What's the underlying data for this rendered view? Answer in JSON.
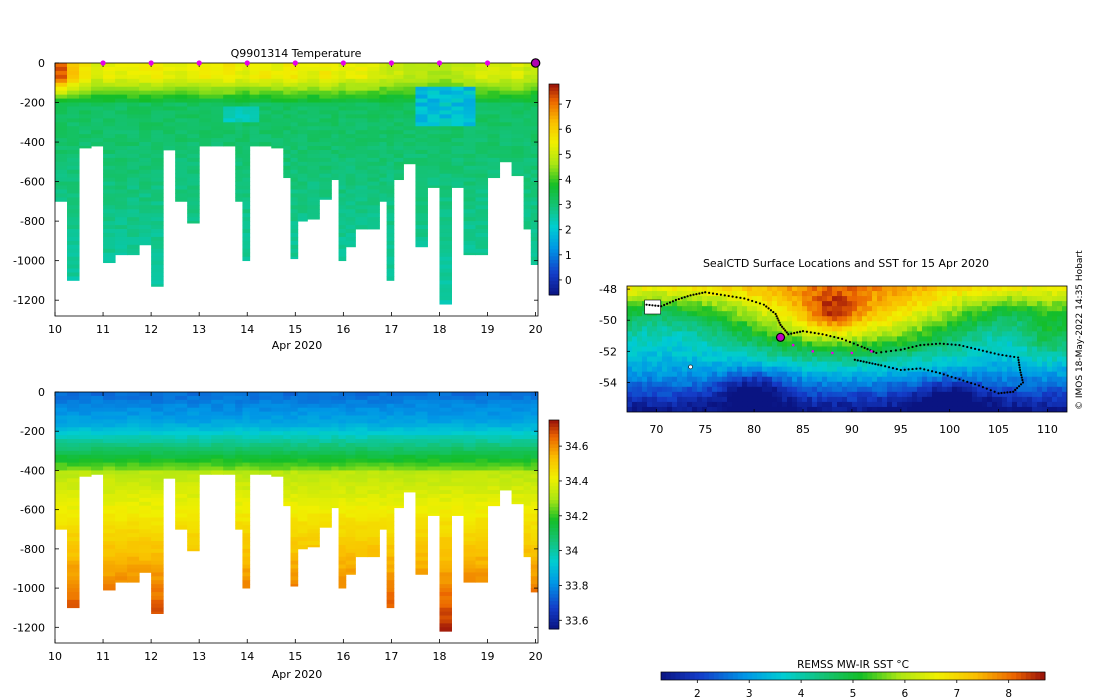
{
  "figure": {
    "watermark": "© IMOS 18-May-2022 14:35 Hobart"
  },
  "chart_data": [
    {
      "type": "heatmap",
      "id": "temperature-section",
      "title": "Q9901314  Temperature",
      "xlabel": "Apr 2020",
      "ylabel": "",
      "x_ticks": [
        10,
        11,
        12,
        13,
        14,
        15,
        16,
        17,
        18,
        19,
        20
      ],
      "xlim": [
        10,
        20.05
      ],
      "y_ticks": [
        0,
        -200,
        -400,
        -600,
        -800,
        -1000,
        -1200
      ],
      "ylim": [
        -1280,
        0
      ],
      "colorbar": {
        "ticks": [
          0,
          1,
          2,
          3,
          4,
          5,
          6,
          7
        ],
        "range": [
          -0.6,
          7.8
        ],
        "palette": "temperature"
      },
      "profile_marker_days": [
        11,
        12,
        13,
        14,
        15,
        16,
        17,
        18,
        19
      ],
      "current_marker_day": 20,
      "surface_value": 4.8,
      "profiles": [
        {
          "day": 10.0,
          "max_depth": 700,
          "warm": 7.2
        },
        {
          "day": 10.25,
          "max_depth": 1100,
          "warm": 6.2
        },
        {
          "day": 10.5,
          "max_depth": 430,
          "warm": 5.6
        },
        {
          "day": 10.75,
          "max_depth": 420,
          "warm": 5.2
        },
        {
          "day": 11.0,
          "max_depth": 1010,
          "warm": 5.4
        },
        {
          "day": 11.25,
          "max_depth": 970,
          "warm": 5.3
        },
        {
          "day": 11.5,
          "max_depth": 970,
          "warm": 5.5
        },
        {
          "day": 11.75,
          "max_depth": 920,
          "warm": 5.4
        },
        {
          "day": 12.0,
          "max_depth": 1130,
          "warm": 5.6
        },
        {
          "day": 12.25,
          "max_depth": 440,
          "warm": 5.3
        },
        {
          "day": 12.5,
          "max_depth": 700,
          "warm": 5.2
        },
        {
          "day": 12.75,
          "max_depth": 810,
          "warm": 5.4
        },
        {
          "day": 13.0,
          "max_depth": 420,
          "warm": 5.5
        },
        {
          "day": 13.25,
          "max_depth": 420,
          "warm": 5.4
        },
        {
          "day": 13.5,
          "max_depth": 420,
          "warm": 5.6
        },
        {
          "day": 13.75,
          "max_depth": 700,
          "warm": 5.3
        },
        {
          "day": 13.9,
          "max_depth": 1000,
          "warm": 5.2
        },
        {
          "day": 14.05,
          "max_depth": 420,
          "warm": 5.4
        },
        {
          "day": 14.25,
          "max_depth": 420,
          "warm": 5.5
        },
        {
          "day": 14.5,
          "max_depth": 430,
          "warm": 5.4
        },
        {
          "day": 14.75,
          "max_depth": 580,
          "warm": 5.6
        },
        {
          "day": 14.9,
          "max_depth": 990,
          "warm": 5.5
        },
        {
          "day": 15.05,
          "max_depth": 800,
          "warm": 5.4
        },
        {
          "day": 15.25,
          "max_depth": 790,
          "warm": 5.3
        },
        {
          "day": 15.5,
          "max_depth": 690,
          "warm": 5.5
        },
        {
          "day": 15.75,
          "max_depth": 590,
          "warm": 5.4
        },
        {
          "day": 15.9,
          "max_depth": 1000,
          "warm": 5.2
        },
        {
          "day": 16.05,
          "max_depth": 930,
          "warm": 5.3
        },
        {
          "day": 16.25,
          "max_depth": 840,
          "warm": 5.4
        },
        {
          "day": 16.5,
          "max_depth": 840,
          "warm": 5.2
        },
        {
          "day": 16.75,
          "max_depth": 700,
          "warm": 5.0
        },
        {
          "day": 16.9,
          "max_depth": 1100,
          "warm": 4.9
        },
        {
          "day": 17.05,
          "max_depth": 590,
          "warm": 5.0
        },
        {
          "day": 17.25,
          "max_depth": 510,
          "warm": 4.8
        },
        {
          "day": 17.5,
          "max_depth": 930,
          "warm": 4.9
        },
        {
          "day": 17.75,
          "max_depth": 630,
          "warm": 4.7
        },
        {
          "day": 18.0,
          "max_depth": 1220,
          "warm": 4.6
        },
        {
          "day": 18.25,
          "max_depth": 630,
          "warm": 4.8
        },
        {
          "day": 18.5,
          "max_depth": 970,
          "warm": 5.0
        },
        {
          "day": 18.75,
          "max_depth": 970,
          "warm": 5.2
        },
        {
          "day": 19.0,
          "max_depth": 580,
          "warm": 5.1
        },
        {
          "day": 19.25,
          "max_depth": 500,
          "warm": 5.0
        },
        {
          "day": 19.5,
          "max_depth": 570,
          "warm": 5.2
        },
        {
          "day": 19.75,
          "max_depth": 840,
          "warm": 4.9
        },
        {
          "day": 19.9,
          "max_depth": 1020,
          "warm": 4.8
        }
      ]
    },
    {
      "type": "heatmap",
      "id": "salinity-section",
      "title": "",
      "xlabel": "Apr 2020",
      "ylabel": "",
      "x_ticks": [
        10,
        11,
        12,
        13,
        14,
        15,
        16,
        17,
        18,
        19,
        20
      ],
      "xlim": [
        10,
        20.05
      ],
      "y_ticks": [
        0,
        -200,
        -400,
        -600,
        -800,
        -1000,
        -1200
      ],
      "ylim": [
        -1280,
        0
      ],
      "colorbar": {
        "ticks": [
          33.6,
          33.8,
          34,
          34.2,
          34.4,
          34.6
        ],
        "tick_labels": [
          "33.6",
          "33.8",
          "34",
          "34.2",
          "34.4",
          "34.6"
        ],
        "range": [
          33.55,
          34.75
        ],
        "palette": "salinity"
      },
      "profile_source": "temperature-section"
    },
    {
      "type": "map",
      "id": "sst-map",
      "title": "SealCTD Surface Locations and SST for 15 Apr 2020",
      "xlabel": "",
      "ylabel": "",
      "lon_ticks": [
        70,
        75,
        80,
        85,
        90,
        95,
        100,
        105,
        110
      ],
      "lon_range": [
        67,
        112
      ],
      "lat_ticks": [
        -48,
        -50,
        -52,
        -54
      ],
      "lat_range": [
        -55.9,
        -47.8
      ],
      "colorbar": {
        "label": "REMSS MW-IR SST °C",
        "ticks": [
          2,
          3,
          4,
          5,
          6,
          7,
          8
        ],
        "range": [
          1.3,
          8.7
        ]
      },
      "current_location": [
        82.7,
        -51.1
      ],
      "track_highlight": [
        [
          82.7,
          -51.1
        ],
        [
          84.0,
          -51.6
        ],
        [
          86.0,
          -52.0
        ],
        [
          88.0,
          -52.1
        ],
        [
          90.0,
          -52.1
        ],
        [
          92.0,
          -52.0
        ]
      ],
      "track": [
        [
          69.0,
          -49.0
        ],
        [
          70.5,
          -49.1
        ],
        [
          72.0,
          -48.7
        ],
        [
          73.5,
          -48.4
        ],
        [
          75.0,
          -48.2
        ],
        [
          77.0,
          -48.4
        ],
        [
          79.0,
          -48.6
        ],
        [
          81.0,
          -49.0
        ],
        [
          82.2,
          -49.6
        ],
        [
          82.7,
          -50.3
        ],
        [
          83.5,
          -50.9
        ],
        [
          85.0,
          -50.7
        ],
        [
          87.0,
          -50.9
        ],
        [
          89.0,
          -51.2
        ],
        [
          91.0,
          -51.7
        ],
        [
          92.5,
          -52.1
        ],
        [
          95.0,
          -51.9
        ],
        [
          97.0,
          -51.6
        ],
        [
          99.0,
          -51.5
        ],
        [
          101.0,
          -51.6
        ],
        [
          103.0,
          -51.9
        ],
        [
          105.0,
          -52.2
        ],
        [
          107.0,
          -52.4
        ],
        [
          107.2,
          -53.2
        ],
        [
          107.5,
          -54.0
        ],
        [
          106.5,
          -54.6
        ],
        [
          105.0,
          -54.7
        ],
        [
          103.0,
          -54.2
        ],
        [
          101.0,
          -53.8
        ],
        [
          99.0,
          -53.4
        ],
        [
          97.0,
          -53.1
        ],
        [
          95.0,
          -53.2
        ],
        [
          93.0,
          -52.9
        ],
        [
          91.5,
          -52.7
        ],
        [
          90.0,
          -52.5
        ]
      ]
    }
  ]
}
